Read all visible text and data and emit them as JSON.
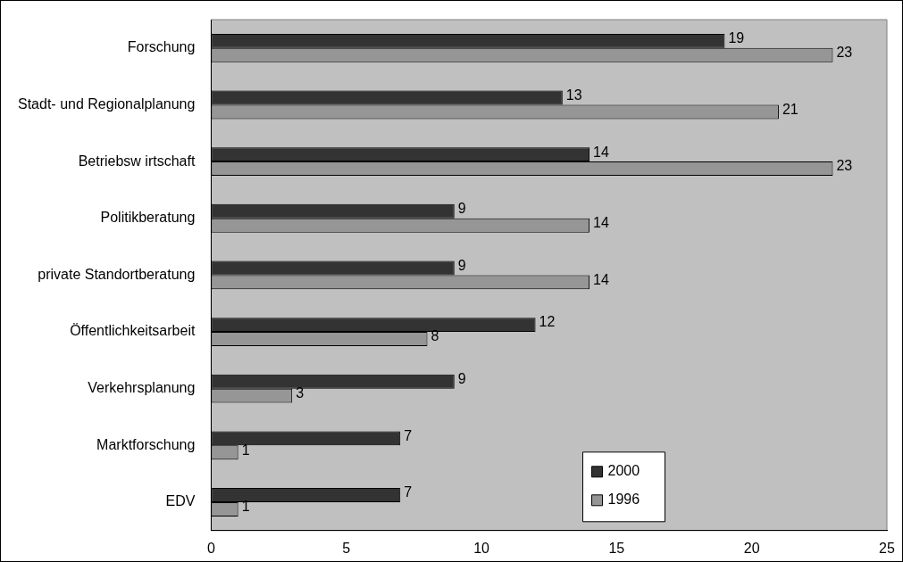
{
  "chart_data": {
    "type": "bar",
    "orientation": "horizontal",
    "categories": [
      "Forschung",
      "Stadt- und Regionalplanung",
      "Betriebsw irtschaft",
      "Politikberatung",
      "private Standortberatung",
      "Öffentlichkeitsarbeit",
      "Verkehrsplanung",
      "Marktforschung",
      "EDV"
    ],
    "series": [
      {
        "name": "2000",
        "color": "#333333",
        "values": [
          19,
          13,
          14,
          9,
          9,
          12,
          9,
          7,
          7
        ]
      },
      {
        "name": "1996",
        "color": "#969696",
        "values": [
          23,
          21,
          23,
          14,
          14,
          8,
          3,
          1,
          1
        ]
      }
    ],
    "xlim": [
      0,
      25
    ],
    "xticks": [
      0,
      5,
      10,
      15,
      20,
      25
    ],
    "data_labels": true,
    "legend": "bottom right",
    "grid": false
  }
}
